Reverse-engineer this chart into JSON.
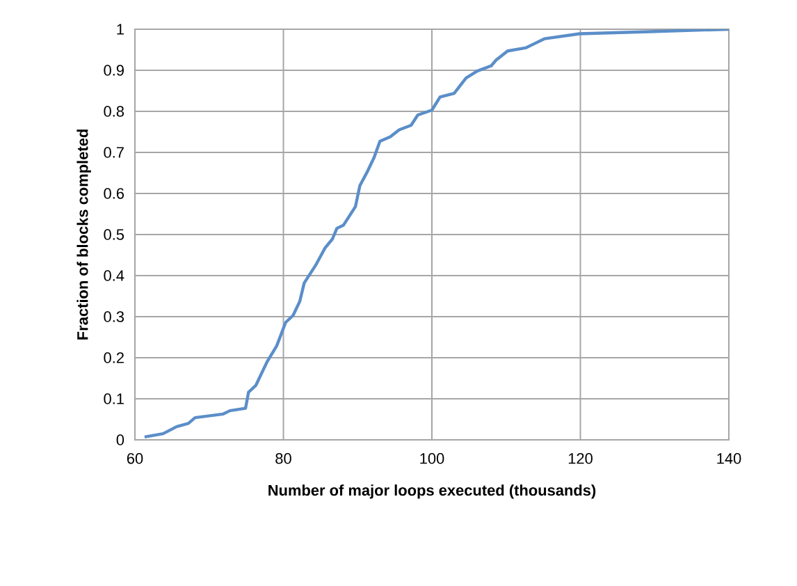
{
  "chart_data": {
    "type": "line",
    "xlabel": "Number of major loops executed (thousands)",
    "ylabel": "Fraction of blocks completed",
    "xlim": [
      60,
      140
    ],
    "xticks": [
      60,
      80,
      100,
      120,
      140
    ],
    "ylim": [
      0,
      1
    ],
    "yticks": [
      0,
      0.1,
      0.2,
      0.3,
      0.4,
      0.5,
      0.6,
      0.7,
      0.8,
      0.9,
      1
    ],
    "grid": true,
    "marker": "none",
    "line_style": "solid",
    "series": [
      {
        "color": "#5b8ec9",
        "x": [
          61.3,
          63.8,
          65.6,
          67.2,
          68.1,
          71.9,
          72.8,
          74.9,
          75.3,
          76.3,
          77.8,
          79.1,
          80.3,
          81.3,
          82.2,
          82.8,
          84.4,
          85.6,
          86.6,
          87.2,
          88.1,
          89.7,
          90.3,
          91.3,
          92.2,
          93.0,
          94.4,
          95.6,
          97.2,
          98.1,
          100,
          101.1,
          103,
          104.6,
          106.1,
          108,
          108.6,
          110.2,
          112.7,
          115.2,
          119.9,
          129.3,
          140
        ],
        "values": [
          0.007,
          0.015,
          0.032,
          0.04,
          0.054,
          0.063,
          0.071,
          0.077,
          0.116,
          0.133,
          0.19,
          0.229,
          0.286,
          0.303,
          0.337,
          0.382,
          0.427,
          0.467,
          0.489,
          0.515,
          0.523,
          0.568,
          0.619,
          0.653,
          0.687,
          0.727,
          0.738,
          0.755,
          0.766,
          0.791,
          0.803,
          0.835,
          0.844,
          0.881,
          0.898,
          0.911,
          0.924,
          0.947,
          0.955,
          0.977,
          0.989,
          0.994,
          1.0
        ]
      }
    ]
  }
}
